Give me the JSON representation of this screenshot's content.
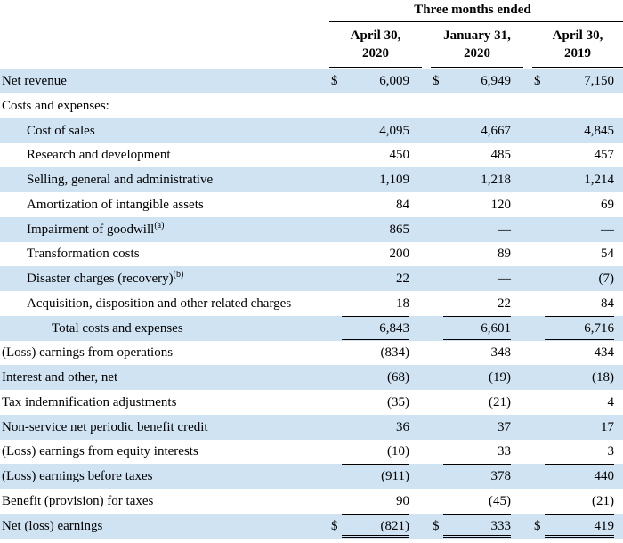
{
  "header": {
    "period_title": "Three months ended",
    "columns": [
      {
        "line1": "April 30,",
        "line2": "2020"
      },
      {
        "line1": "January 31,",
        "line2": "2020"
      },
      {
        "line1": "April 30,",
        "line2": "2019"
      }
    ]
  },
  "currency_symbol": "$",
  "rows": [
    {
      "label": "Net revenue",
      "values": [
        "6,009",
        "6,949",
        "7,150"
      ]
    },
    {
      "label": "Costs and expenses:",
      "values": [
        "",
        "",
        ""
      ]
    },
    {
      "label": "Cost of sales",
      "values": [
        "4,095",
        "4,667",
        "4,845"
      ]
    },
    {
      "label": "Research and development",
      "values": [
        "450",
        "485",
        "457"
      ]
    },
    {
      "label": "Selling, general and administrative",
      "values": [
        "1,109",
        "1,218",
        "1,214"
      ]
    },
    {
      "label": "Amortization of intangible assets",
      "values": [
        "84",
        "120",
        "69"
      ]
    },
    {
      "label": "Impairment of goodwill",
      "note": "(a)",
      "values": [
        "865",
        "—",
        "—"
      ]
    },
    {
      "label": "Transformation costs",
      "values": [
        "200",
        "89",
        "54"
      ]
    },
    {
      "label": "Disaster charges (recovery)",
      "note": "(b)",
      "values": [
        "22",
        "—",
        "(7)"
      ]
    },
    {
      "label": "Acquisition, disposition and other related charges",
      "values": [
        "18",
        "22",
        "84"
      ]
    },
    {
      "label": "Total costs and expenses",
      "values": [
        "6,843",
        "6,601",
        "6,716"
      ]
    },
    {
      "label": "(Loss) earnings from operations",
      "values": [
        "(834)",
        "348",
        "434"
      ]
    },
    {
      "label": "Interest and other, net",
      "values": [
        "(68)",
        "(19)",
        "(18)"
      ]
    },
    {
      "label": "Tax indemnification adjustments",
      "values": [
        "(35)",
        "(21)",
        "4"
      ]
    },
    {
      "label": "Non-service net periodic benefit credit",
      "values": [
        "36",
        "37",
        "17"
      ]
    },
    {
      "label": "(Loss) earnings from equity interests",
      "values": [
        "(10)",
        "33",
        "3"
      ]
    },
    {
      "label": "(Loss) earnings before taxes",
      "values": [
        "(911)",
        "378",
        "440"
      ]
    },
    {
      "label": "Benefit (provision) for taxes",
      "values": [
        "90",
        "(45)",
        "(21)"
      ]
    },
    {
      "label": "Net (loss) earnings",
      "values": [
        "(821)",
        "333",
        "419"
      ]
    }
  ],
  "row_shading": "#cfe3f3"
}
